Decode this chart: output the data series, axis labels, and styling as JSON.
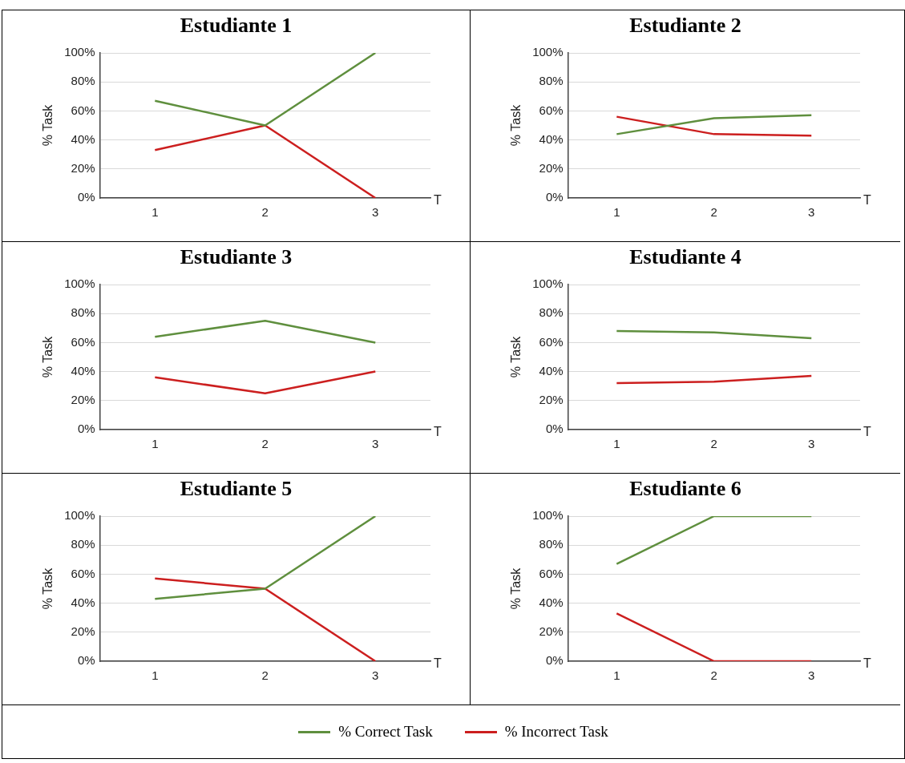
{
  "chart_data": [
    {
      "type": "line",
      "title": "Estudiante 1",
      "ylabel": "% Task",
      "xlabel": "T",
      "categories": [
        "1",
        "2",
        "3"
      ],
      "ylim": [
        0,
        100
      ],
      "yticks": [
        {
          "value": 0,
          "label": "0%"
        },
        {
          "value": 20,
          "label": "20%"
        },
        {
          "value": 40,
          "label": "40%"
        },
        {
          "value": 60,
          "label": "60%"
        },
        {
          "value": 80,
          "label": "80%"
        },
        {
          "value": 100,
          "label": "100%"
        }
      ],
      "grid": "y",
      "series": [
        {
          "color": "#5f8f3e",
          "values": [
            67,
            50,
            100
          ]
        },
        {
          "color": "#cc1f1f",
          "values": [
            33,
            50,
            0
          ]
        }
      ]
    },
    {
      "type": "line",
      "title": "Estudiante 2",
      "ylabel": "% Task",
      "xlabel": "T",
      "categories": [
        "1",
        "2",
        "3"
      ],
      "ylim": [
        0,
        100
      ],
      "yticks": [
        {
          "value": 0,
          "label": "0%"
        },
        {
          "value": 20,
          "label": "20%"
        },
        {
          "value": 40,
          "label": "40%"
        },
        {
          "value": 60,
          "label": "60%"
        },
        {
          "value": 80,
          "label": "80%"
        },
        {
          "value": 100,
          "label": "100%"
        }
      ],
      "grid": "y",
      "series": [
        {
          "color": "#5f8f3e",
          "values": [
            44,
            55,
            57
          ]
        },
        {
          "color": "#cc1f1f",
          "values": [
            56,
            44,
            43
          ]
        }
      ]
    },
    {
      "type": "line",
      "title": "Estudiante 3",
      "ylabel": "% Task",
      "xlabel": "T",
      "categories": [
        "1",
        "2",
        "3"
      ],
      "ylim": [
        0,
        100
      ],
      "yticks": [
        {
          "value": 0,
          "label": "0%"
        },
        {
          "value": 20,
          "label": "20%"
        },
        {
          "value": 40,
          "label": "40%"
        },
        {
          "value": 60,
          "label": "60%"
        },
        {
          "value": 80,
          "label": "80%"
        },
        {
          "value": 100,
          "label": "100%"
        }
      ],
      "grid": "y",
      "series": [
        {
          "color": "#5f8f3e",
          "values": [
            64,
            75,
            60
          ]
        },
        {
          "color": "#cc1f1f",
          "values": [
            36,
            25,
            40
          ]
        }
      ]
    },
    {
      "type": "line",
      "title": "Estudiante 4",
      "ylabel": "% Task",
      "xlabel": "T",
      "categories": [
        "1",
        "2",
        "3"
      ],
      "ylim": [
        0,
        100
      ],
      "yticks": [
        {
          "value": 0,
          "label": "0%"
        },
        {
          "value": 20,
          "label": "20%"
        },
        {
          "value": 40,
          "label": "40%"
        },
        {
          "value": 60,
          "label": "60%"
        },
        {
          "value": 80,
          "label": "80%"
        },
        {
          "value": 100,
          "label": "100%"
        }
      ],
      "grid": "y",
      "series": [
        {
          "color": "#5f8f3e",
          "values": [
            68,
            67,
            63
          ]
        },
        {
          "color": "#cc1f1f",
          "values": [
            32,
            33,
            37
          ]
        }
      ]
    },
    {
      "type": "line",
      "title": "Estudiante 5",
      "ylabel": "% Task",
      "xlabel": "T",
      "categories": [
        "1",
        "2",
        "3"
      ],
      "ylim": [
        0,
        100
      ],
      "yticks": [
        {
          "value": 0,
          "label": "0%"
        },
        {
          "value": 20,
          "label": "20%"
        },
        {
          "value": 40,
          "label": "40%"
        },
        {
          "value": 60,
          "label": "60%"
        },
        {
          "value": 80,
          "label": "80%"
        },
        {
          "value": 100,
          "label": "100%"
        }
      ],
      "grid": "y",
      "series": [
        {
          "color": "#5f8f3e",
          "values": [
            43,
            50,
            100
          ]
        },
        {
          "color": "#cc1f1f",
          "values": [
            57,
            50,
            0
          ]
        }
      ]
    },
    {
      "type": "line",
      "title": "Estudiante 6",
      "ylabel": "% Task",
      "xlabel": "T",
      "categories": [
        "1",
        "2",
        "3"
      ],
      "ylim": [
        0,
        100
      ],
      "yticks": [
        {
          "value": 0,
          "label": "0%"
        },
        {
          "value": 20,
          "label": "20%"
        },
        {
          "value": 40,
          "label": "40%"
        },
        {
          "value": 60,
          "label": "60%"
        },
        {
          "value": 80,
          "label": "80%"
        },
        {
          "value": 100,
          "label": "100%"
        }
      ],
      "grid": "y",
      "legend": "bottom",
      "series": [
        {
          "name": "% Correct Task",
          "color": "#5f8f3e",
          "values": [
            67,
            100,
            100
          ]
        },
        {
          "name": "% Incorrect Task",
          "color": "#cc1f1f",
          "values": [
            33,
            0,
            0
          ]
        }
      ]
    }
  ]
}
